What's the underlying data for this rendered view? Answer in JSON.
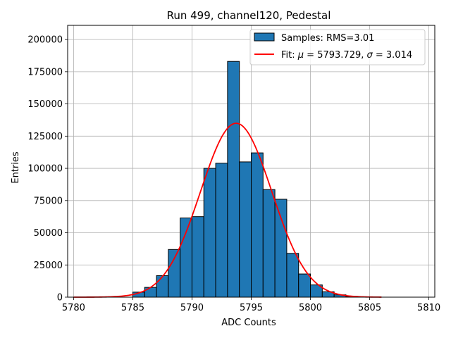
{
  "chart_data": {
    "type": "histogram",
    "title": "Run 499, channel120, Pedestal",
    "xlabel": "ADC Counts",
    "ylabel": "Entries",
    "xlim": [
      5779.5,
      5810.5
    ],
    "ylim": [
      0,
      211000
    ],
    "xticks": [
      5780,
      5785,
      5790,
      5795,
      5800,
      5805,
      5810
    ],
    "yticks": [
      0,
      25000,
      50000,
      75000,
      100000,
      125000,
      150000,
      175000,
      200000
    ],
    "grid": true,
    "legend_position": "top-right",
    "bar_color": "#1f77b4",
    "bar_edge_color": "#000000",
    "fit_color": "#ff0000",
    "bins": [
      {
        "x0": 5785,
        "x1": 5786,
        "count": 3900
      },
      {
        "x0": 5786,
        "x1": 5787,
        "count": 7600
      },
      {
        "x0": 5787,
        "x1": 5788,
        "count": 16700
      },
      {
        "x0": 5788,
        "x1": 5789,
        "count": 37000
      },
      {
        "x0": 5789,
        "x1": 5790,
        "count": 61500
      },
      {
        "x0": 5790,
        "x1": 5791,
        "count": 62500
      },
      {
        "x0": 5791,
        "x1": 5792,
        "count": 100000
      },
      {
        "x0": 5792,
        "x1": 5793,
        "count": 104000
      },
      {
        "x0": 5793,
        "x1": 5794,
        "count": 183000
      },
      {
        "x0": 5794,
        "x1": 5795,
        "count": 105000
      },
      {
        "x0": 5795,
        "x1": 5796,
        "count": 112000
      },
      {
        "x0": 5796,
        "x1": 5797,
        "count": 83500
      },
      {
        "x0": 5797,
        "x1": 5798,
        "count": 76000
      },
      {
        "x0": 5798,
        "x1": 5799,
        "count": 34000
      },
      {
        "x0": 5799,
        "x1": 5800,
        "count": 18000
      },
      {
        "x0": 5800,
        "x1": 5801,
        "count": 9500
      },
      {
        "x0": 5801,
        "x1": 5802,
        "count": 4200
      },
      {
        "x0": 5802,
        "x1": 5803,
        "count": 1800
      },
      {
        "x0": 5803,
        "x1": 5804,
        "count": 600
      }
    ],
    "fit": {
      "mu": 5793.729,
      "sigma": 3.014,
      "amplitude": 135000,
      "x_range": [
        5780,
        5806
      ]
    },
    "legend": [
      {
        "label": "Samples: RMS=3.01",
        "kind": "bar"
      },
      {
        "label_prefix": "Fit: ",
        "mu_symbol": "μ",
        "mu_text": " = 5793.729, ",
        "sigma_symbol": "σ",
        "sigma_text": " = 3.014",
        "kind": "line"
      }
    ]
  }
}
